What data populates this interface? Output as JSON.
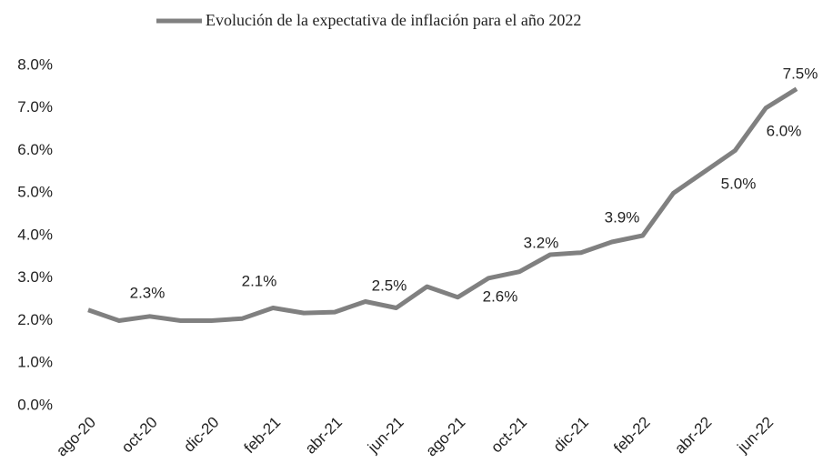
{
  "chart_data": {
    "type": "line",
    "categories": [
      "ago-20",
      null,
      "oct-20",
      null,
      "dic-20",
      null,
      "feb-21",
      null,
      "abr-21",
      null,
      "jun-21",
      null,
      "ago-21",
      null,
      "oct-21",
      null,
      "dic-21",
      null,
      "feb-22",
      null,
      "abr-22",
      null,
      "jun-22",
      null
    ],
    "series": [
      {
        "name": "Evolución de la expectativa de inflación para el año 2022",
        "color": "#808080",
        "values": [
          2.25,
          2.0,
          2.1,
          2.0,
          2.0,
          2.05,
          2.3,
          2.18,
          2.2,
          2.45,
          2.3,
          2.8,
          2.55,
          3.0,
          3.15,
          3.55,
          3.6,
          3.85,
          4.0,
          5.0,
          5.5,
          6.0,
          7.0,
          7.45
        ]
      }
    ],
    "annotations": [
      "2.3%",
      "2.1%",
      "2.5%",
      "2.6%",
      "3.2%",
      "3.9%",
      "5.0%",
      "6.0%",
      "7.5%"
    ],
    "ylim": [
      0,
      8
    ],
    "yticks": [
      {
        "value": 0,
        "label": "0.0%"
      },
      {
        "value": 1,
        "label": "1.0%"
      },
      {
        "value": 2,
        "label": "2.0%"
      },
      {
        "value": 3,
        "label": "3.0%"
      },
      {
        "value": 4,
        "label": "4.0%"
      },
      {
        "value": 5,
        "label": "5.0%"
      },
      {
        "value": 6,
        "label": "6.0%"
      },
      {
        "value": 7,
        "label": "7.0%"
      },
      {
        "value": 8,
        "label": "8.0%"
      }
    ],
    "grid": false,
    "legend": "top"
  }
}
